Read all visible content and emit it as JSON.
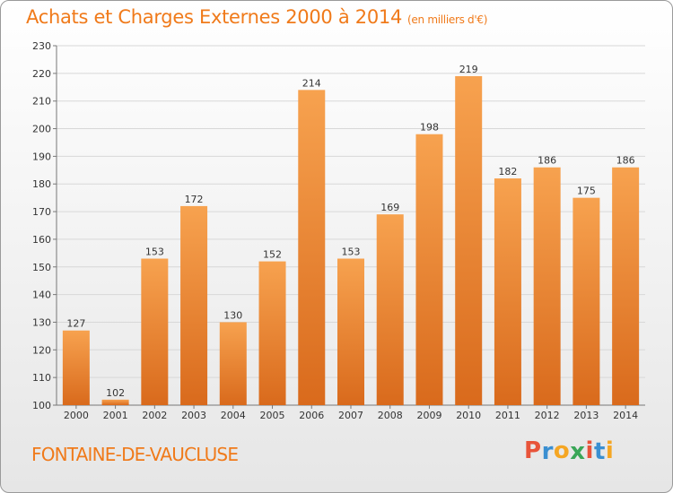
{
  "header": {
    "title": "Achats et Charges Externes 2000 à 2014",
    "subtitle": "(en milliers d'€)"
  },
  "footer": {
    "city": "FONTAINE-DE-VAUCLUSE",
    "logo_letters": [
      "P",
      "r",
      "o",
      "x",
      "i",
      "t",
      "i"
    ],
    "logo_colors": [
      "#e8543a",
      "#3a8fd1",
      "#f5a623",
      "#3aa657",
      "#e8543a",
      "#3a8fd1",
      "#f5a623"
    ]
  },
  "chart_data": {
    "type": "bar",
    "title": "Achats et Charges Externes 2000 à 2014",
    "subtitle": "(en milliers d'€)",
    "xlabel": "",
    "ylabel": "",
    "categories": [
      "2000",
      "2001",
      "2002",
      "2003",
      "2004",
      "2005",
      "2006",
      "2007",
      "2008",
      "2009",
      "2010",
      "2011",
      "2012",
      "2013",
      "2014"
    ],
    "values": [
      127,
      102,
      153,
      172,
      130,
      152,
      214,
      153,
      169,
      198,
      219,
      182,
      186,
      175,
      186
    ],
    "ylim": [
      100,
      230
    ],
    "yticks": [
      100,
      110,
      120,
      130,
      140,
      150,
      160,
      170,
      180,
      190,
      200,
      210,
      220,
      230
    ],
    "grid": true,
    "bar_color_top": "#f7a24f",
    "bar_color_bottom": "#d96a1c"
  }
}
